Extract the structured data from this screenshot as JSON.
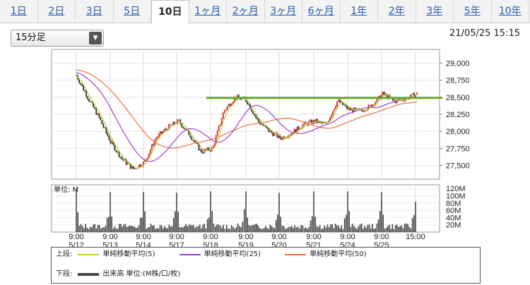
{
  "tabs": [
    {
      "label": "1日",
      "active": false
    },
    {
      "label": "2日",
      "active": false
    },
    {
      "label": "3日",
      "active": false
    },
    {
      "label": "5日",
      "active": false
    },
    {
      "label": "10日",
      "active": true
    },
    {
      "label": "1ヶ月",
      "active": false
    },
    {
      "label": "2ヶ月",
      "active": false
    },
    {
      "label": "3ヶ月",
      "active": false
    },
    {
      "label": "6ヶ月",
      "active": false
    },
    {
      "label": "1年",
      "active": false
    },
    {
      "label": "2年",
      "active": false
    },
    {
      "label": "3年",
      "active": false
    },
    {
      "label": "5年",
      "active": false
    },
    {
      "label": "10年",
      "active": false
    }
  ],
  "interval_select": {
    "value": "15分足"
  },
  "timestamp": "21/05/25 15:15",
  "legend": {
    "upper_label": "上段:",
    "lower_label": "下段:",
    "sma5": "単純移動平均(5)",
    "sma25": "単純移動平均(25)",
    "sma50": "単純移動平均(50)",
    "volume": "出来高 単位:(M株/口/枚)"
  },
  "colors": {
    "up": "#d62020",
    "down": "#2a2a2a",
    "sma5": "#b8d232",
    "sma25": "#a040c8",
    "sma50": "#e8703a",
    "resistance": "#6aa832",
    "volume": "#444444",
    "tab_link": "#2a5db0"
  },
  "chart_data": {
    "type": "candlestick",
    "x_ticks": [
      {
        "time": "9:00",
        "date": "5/12"
      },
      {
        "time": "9:00",
        "date": "5/13"
      },
      {
        "time": "9:00",
        "date": "5/14"
      },
      {
        "time": "9:00",
        "date": "5/17"
      },
      {
        "time": "9:00",
        "date": "5/18"
      },
      {
        "time": "9:00",
        "date": "5/19"
      },
      {
        "time": "9:00",
        "date": "5/20"
      },
      {
        "time": "9:00",
        "date": "5/21"
      },
      {
        "time": "9:00",
        "date": "5/24"
      },
      {
        "time": "9:00",
        "date": "5/25"
      },
      {
        "time": "15:00",
        "date": ""
      }
    ],
    "price_axis": {
      "ylim": [
        27300,
        29200
      ],
      "ticks": [
        "29,000",
        "28,750",
        "28,500",
        "28,250",
        "28,000",
        "27,750",
        "27,500"
      ],
      "tick_values": [
        29000,
        28750,
        28500,
        28250,
        28000,
        27750,
        27500
      ]
    },
    "resistance_level": 28490,
    "price_path": [
      28820,
      28500,
      28200,
      27850,
      27600,
      27450,
      27550,
      27900,
      28050,
      28150,
      27950,
      27700,
      27750,
      28300,
      28500,
      28450,
      28150,
      28000,
      27900,
      27980,
      28100,
      28150,
      28100,
      28450,
      28320,
      28300,
      28380,
      28550,
      28440,
      28480,
      28550
    ],
    "volume_panel": {
      "label": "単位: M",
      "ylim": [
        0,
        130
      ],
      "ticks": [
        "120M",
        "100M",
        "80M",
        "60M",
        "40M",
        "20M"
      ],
      "tick_values": [
        120,
        100,
        80,
        60,
        40,
        20
      ]
    },
    "volume_open_peaks": [
      118,
      110,
      110,
      108,
      112,
      112,
      108,
      112,
      112,
      110
    ],
    "volume_close_peak": 84
  }
}
